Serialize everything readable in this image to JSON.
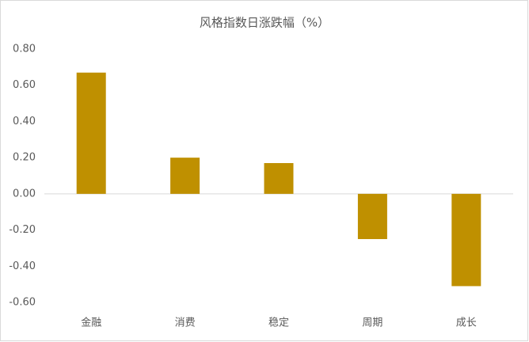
{
  "chart_data": {
    "type": "bar",
    "title": "风格指数日涨跌幅（%）",
    "categories": [
      "金融",
      "消费",
      "稳定",
      "周期",
      "成长"
    ],
    "values": [
      0.67,
      0.2,
      0.17,
      -0.25,
      -0.51
    ],
    "color": "#bf9000",
    "ylim": [
      -0.6,
      0.8
    ],
    "yticks": [
      {
        "value": -0.6,
        "label": "-0.60"
      },
      {
        "value": -0.4,
        "label": "-0.40"
      },
      {
        "value": -0.2,
        "label": "-0.20"
      },
      {
        "value": 0,
        "label": "0.00"
      },
      {
        "value": 0.2,
        "label": "0.20"
      },
      {
        "value": 0.4,
        "label": "0.40"
      },
      {
        "value": 0.6,
        "label": "0.60"
      },
      {
        "value": 0.8,
        "label": "0.80"
      }
    ],
    "grid": false
  }
}
